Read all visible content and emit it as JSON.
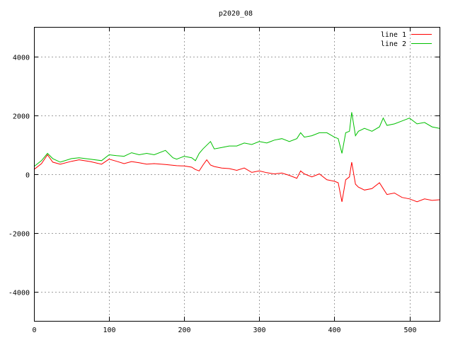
{
  "chart_data": {
    "type": "line",
    "title": "p2020_08",
    "xlabel": "",
    "ylabel": "",
    "xlim": [
      0,
      540
    ],
    "ylim": [
      -5000,
      5000
    ],
    "x_ticks": [
      0,
      100,
      200,
      300,
      400,
      500
    ],
    "y_ticks": [
      -4000,
      -2000,
      0,
      2000,
      4000
    ],
    "grid": true,
    "legend_position": "top-right",
    "series": [
      {
        "name": "line 1",
        "color": "#ff0000",
        "x": [
          0,
          10,
          18,
          25,
          35,
          50,
          60,
          75,
          90,
          100,
          110,
          120,
          130,
          140,
          150,
          160,
          175,
          190,
          200,
          210,
          215,
          220,
          225,
          230,
          235,
          240,
          250,
          260,
          270,
          280,
          290,
          300,
          310,
          320,
          330,
          340,
          350,
          355,
          360,
          370,
          380,
          390,
          400,
          405,
          410,
          415,
          420,
          423,
          428,
          432,
          440,
          450,
          460,
          465,
          470,
          480,
          490,
          500,
          510,
          520,
          530,
          540
        ],
        "y": [
          150,
          350,
          650,
          400,
          330,
          430,
          480,
          420,
          330,
          500,
          430,
          350,
          420,
          380,
          330,
          350,
          320,
          280,
          270,
          230,
          150,
          100,
          300,
          480,
          300,
          250,
          200,
          180,
          120,
          200,
          50,
          100,
          40,
          0,
          30,
          -50,
          -150,
          100,
          0,
          -100,
          0,
          -200,
          -250,
          -300,
          -950,
          -200,
          -100,
          400,
          -350,
          -450,
          -550,
          -500,
          -300,
          -500,
          -700,
          -650,
          -800,
          -850,
          -950,
          -850,
          -900,
          -880
        ]
      },
      {
        "name": "line 2",
        "color": "#00c000",
        "x": [
          0,
          10,
          18,
          25,
          35,
          50,
          60,
          75,
          90,
          100,
          110,
          120,
          130,
          140,
          150,
          160,
          175,
          185,
          190,
          200,
          210,
          215,
          220,
          225,
          235,
          240,
          250,
          260,
          270,
          280,
          290,
          300,
          310,
          320,
          330,
          340,
          350,
          355,
          360,
          370,
          380,
          390,
          400,
          405,
          410,
          415,
          420,
          423,
          428,
          432,
          440,
          450,
          460,
          465,
          470,
          480,
          490,
          500,
          510,
          520,
          530,
          540
        ],
        "y": [
          250,
          450,
          700,
          520,
          400,
          520,
          550,
          500,
          450,
          650,
          620,
          600,
          720,
          650,
          700,
          650,
          800,
          550,
          500,
          600,
          550,
          450,
          700,
          850,
          1100,
          850,
          900,
          950,
          950,
          1050,
          1000,
          1100,
          1050,
          1150,
          1200,
          1100,
          1200,
          1400,
          1250,
          1300,
          1400,
          1400,
          1250,
          1200,
          700,
          1400,
          1450,
          2100,
          1300,
          1450,
          1550,
          1450,
          1600,
          1900,
          1650,
          1700,
          1800,
          1900,
          1700,
          1750,
          1600,
          1550
        ]
      }
    ]
  }
}
